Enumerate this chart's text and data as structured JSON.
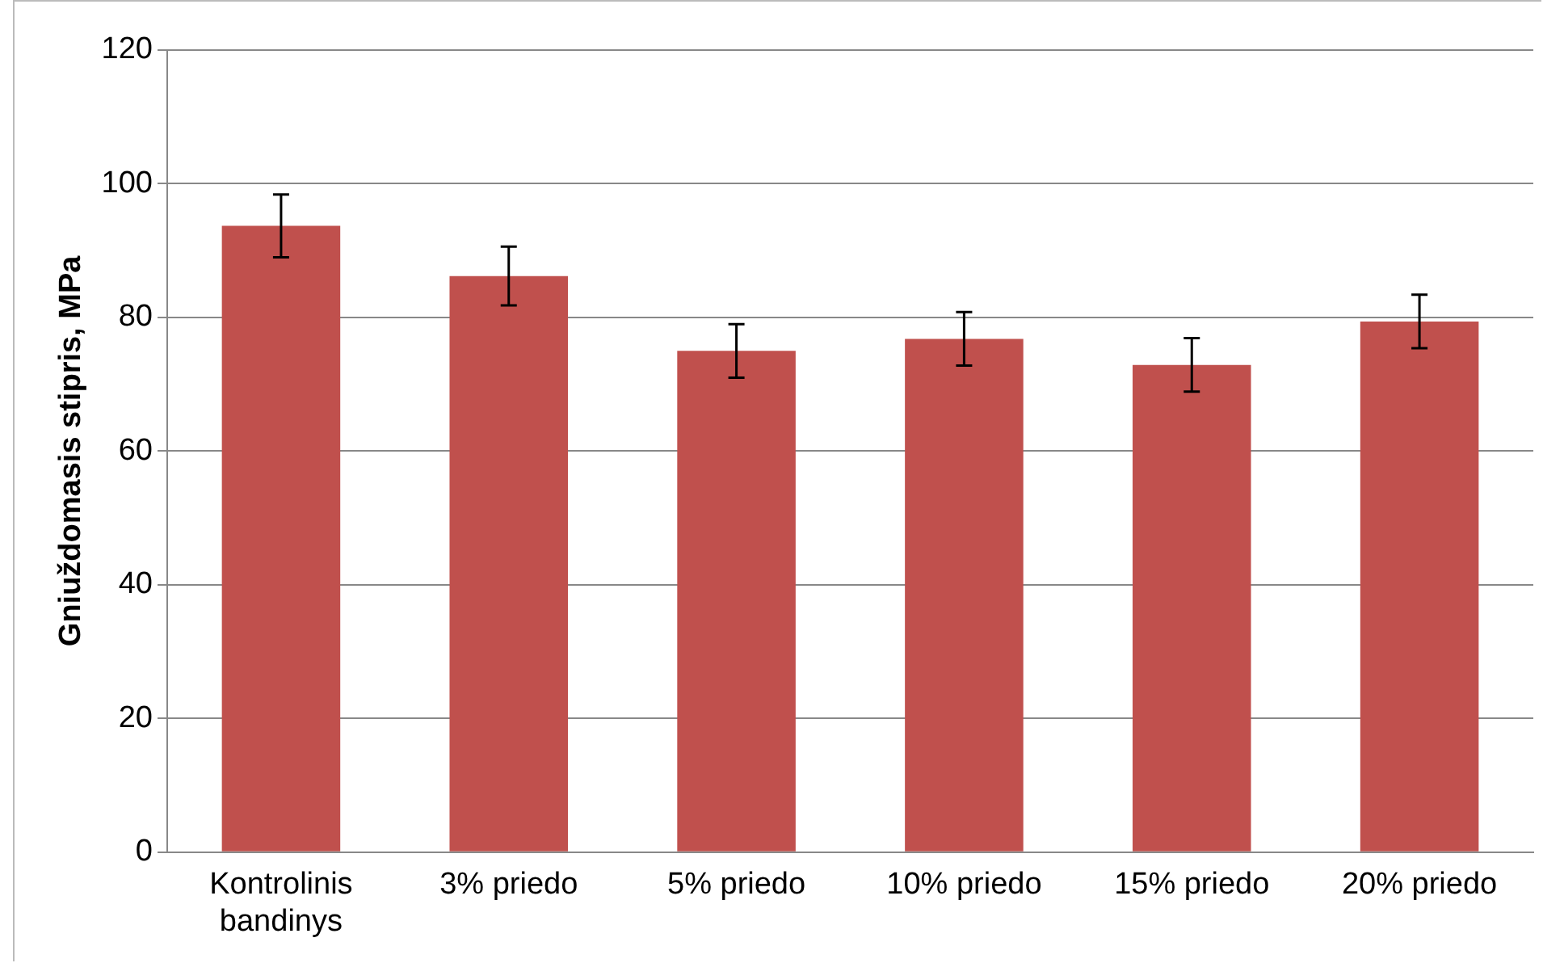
{
  "chart_data": {
    "type": "bar",
    "ylabel": "Gniuždomasis stipris, MPa",
    "categories": [
      "Kontrolinis bandinys",
      "3% priedo",
      "5% priedo",
      "10% priedo",
      "15% priedo",
      "20% priedo"
    ],
    "values": [
      93.7,
      86.2,
      75,
      76.8,
      72.9,
      79.4
    ],
    "errors": [
      4.7,
      4.4,
      4,
      4,
      4,
      4
    ],
    "color": "#c0504d",
    "ylim": [
      0,
      120
    ],
    "yticks": [
      0,
      20,
      40,
      60,
      80,
      100,
      120
    ],
    "grid": "y",
    "legend": false
  }
}
